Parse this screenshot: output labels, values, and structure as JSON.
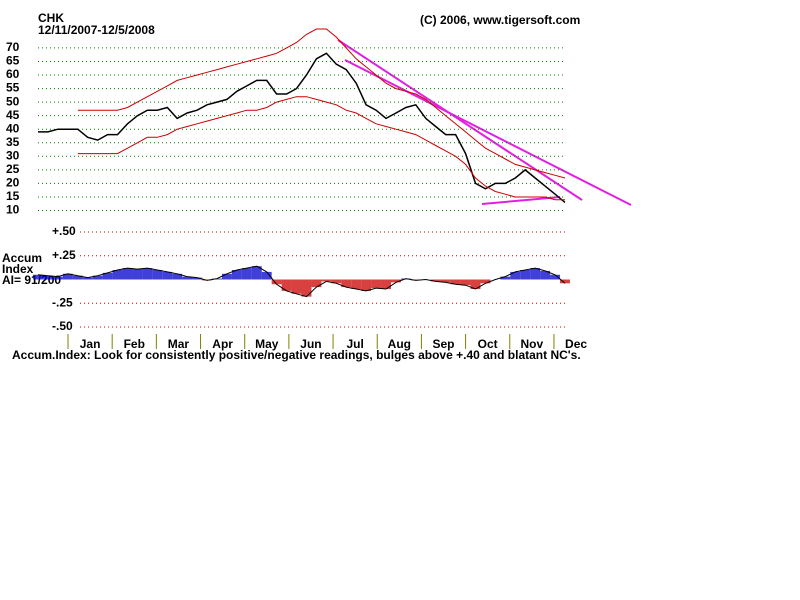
{
  "chart_data": [
    {
      "type": "line",
      "title": "CHK",
      "subtitle": "12/11/2007-12/5/2008",
      "annotation": "(C) 2006, www.tigersoft.com",
      "ylim": [
        10,
        73
      ],
      "yticks": [
        10,
        15,
        20,
        25,
        30,
        35,
        40,
        45,
        50,
        55,
        60,
        65,
        70
      ],
      "grid": true,
      "grid_color": "#008000",
      "series": [
        {
          "color": "#000000",
          "values": [
            39,
            39,
            40,
            40,
            40,
            37,
            36,
            38,
            38,
            42,
            45,
            47,
            47,
            48,
            44,
            46,
            47,
            49,
            50,
            51,
            54,
            56,
            58,
            58,
            53,
            53,
            55,
            60,
            66,
            68,
            64,
            62,
            57,
            49,
            47,
            44,
            46,
            48,
            49,
            44,
            41,
            38,
            38,
            31,
            20,
            18,
            20,
            20,
            22,
            25,
            22,
            19,
            16,
            13
          ]
        },
        {
          "color": "#cc0000",
          "values": [
            null,
            null,
            null,
            null,
            47,
            47,
            47,
            47,
            47,
            48,
            50,
            52,
            54,
            56,
            58,
            59,
            60,
            61,
            62,
            63,
            64,
            65,
            66,
            67,
            68,
            70,
            72,
            75,
            77,
            77,
            74,
            70,
            66,
            63,
            60,
            57,
            55,
            54,
            53,
            51,
            48,
            45,
            42,
            39,
            36,
            33,
            31,
            29,
            27,
            26,
            25,
            24,
            23,
            22
          ]
        },
        {
          "color": "#cc0000",
          "values": [
            null,
            null,
            null,
            null,
            31,
            31,
            31,
            31,
            31,
            33,
            35,
            37,
            37,
            38,
            40,
            41,
            42,
            43,
            44,
            45,
            46,
            47,
            47,
            48,
            50,
            51,
            52,
            52,
            51,
            50,
            49,
            47,
            46,
            44,
            42,
            41,
            40,
            39,
            38,
            36,
            34,
            32,
            30,
            27,
            22,
            19,
            17,
            16,
            15,
            15,
            15,
            15,
            14,
            14
          ]
        }
      ]
    },
    {
      "type": "bar",
      "label_lines": [
        "Accum",
        "Index",
        "AI= 91/200"
      ],
      "note": "Accum.Index: Look for consistently positive/negative readings, bulges above +.40 and blatant NC's.",
      "month_labels": [
        "Jan",
        "Feb",
        "Mar",
        "Apr",
        "May",
        "Jun",
        "Jul",
        "Aug",
        "Sep",
        "Oct",
        "Nov",
        "Dec"
      ],
      "ylim": [
        -0.5,
        0.5
      ],
      "yticks": [
        {
          "value": 0.5,
          "label": "+.50"
        },
        {
          "value": 0.25,
          "label": "+.25"
        },
        {
          "value": -0.25,
          "label": "-.25"
        },
        {
          "value": -0.5,
          "label": "-.50"
        }
      ],
      "grid": true,
      "grid_color": "#cc0000",
      "positive_color": "#0000cc",
      "negative_color": "#cc0000",
      "values": [
        0.05,
        0.04,
        0.03,
        0.06,
        0.04,
        0.02,
        0.04,
        0.07,
        0.1,
        0.12,
        0.11,
        0.12,
        0.1,
        0.08,
        0.06,
        0.03,
        0.02,
        -0.01,
        0.01,
        0.06,
        0.1,
        0.12,
        0.14,
        0.08,
        -0.05,
        -0.12,
        -0.15,
        -0.18,
        -0.08,
        -0.02,
        -0.04,
        -0.08,
        -0.1,
        -0.12,
        -0.09,
        -0.1,
        -0.03,
        0.01,
        -0.01,
        0.0,
        -0.02,
        -0.03,
        -0.05,
        -0.06,
        -0.1,
        -0.04,
        0.0,
        0.03,
        0.08,
        0.1,
        0.12,
        0.09,
        0.05,
        -0.04
      ]
    }
  ]
}
